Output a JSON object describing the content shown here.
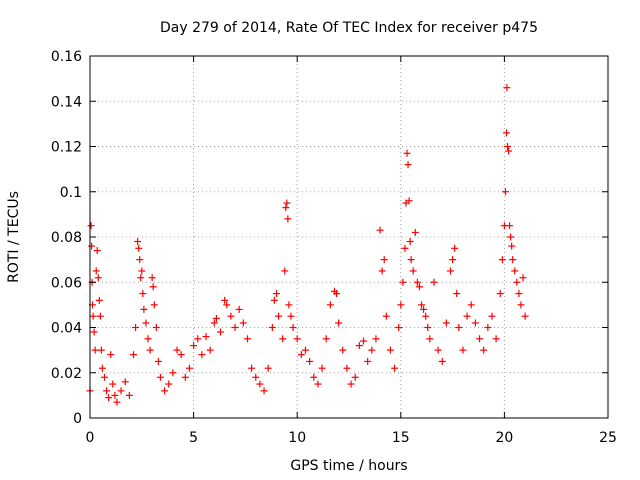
{
  "chart_data": {
    "type": "scatter",
    "title": "Day 279 of 2014, Rate Of TEC Index for receiver p475",
    "xlabel": "GPS time / hours",
    "ylabel": "ROTI / TECUs",
    "xlim": [
      0,
      25
    ],
    "ylim": [
      0,
      0.16
    ],
    "x_ticks": [
      {
        "value": 0,
        "label": "0"
      },
      {
        "value": 5,
        "label": "5"
      },
      {
        "value": 10,
        "label": "10"
      },
      {
        "value": 15,
        "label": "15"
      },
      {
        "value": 20,
        "label": "20"
      },
      {
        "value": 25,
        "label": "25"
      }
    ],
    "y_ticks": [
      {
        "value": 0,
        "label": "0"
      },
      {
        "value": 0.02,
        "label": "0.02"
      },
      {
        "value": 0.04,
        "label": "0.04"
      },
      {
        "value": 0.06,
        "label": "0.06"
      },
      {
        "value": 0.08,
        "label": "0.08"
      },
      {
        "value": 0.1,
        "label": "0.1"
      },
      {
        "value": 0.12,
        "label": "0.12"
      },
      {
        "value": 0.14,
        "label": "0.14"
      },
      {
        "value": 0.16,
        "label": "0.16"
      }
    ],
    "grid": true,
    "marker": "+",
    "marker_color": "#ff0000",
    "series": [
      {
        "name": "p475",
        "points": [
          [
            0.0,
            0.012
          ],
          [
            0.05,
            0.085
          ],
          [
            0.08,
            0.076
          ],
          [
            0.1,
            0.06
          ],
          [
            0.12,
            0.05
          ],
          [
            0.15,
            0.045
          ],
          [
            0.2,
            0.038
          ],
          [
            0.25,
            0.03
          ],
          [
            0.3,
            0.065
          ],
          [
            0.35,
            0.074
          ],
          [
            0.4,
            0.062
          ],
          [
            0.45,
            0.052
          ],
          [
            0.5,
            0.045
          ],
          [
            0.55,
            0.03
          ],
          [
            0.6,
            0.022
          ],
          [
            0.7,
            0.018
          ],
          [
            0.8,
            0.012
          ],
          [
            0.9,
            0.009
          ],
          [
            1.0,
            0.028
          ],
          [
            1.1,
            0.015
          ],
          [
            1.2,
            0.01
          ],
          [
            1.3,
            0.007
          ],
          [
            1.5,
            0.012
          ],
          [
            1.7,
            0.016
          ],
          [
            1.9,
            0.01
          ],
          [
            2.1,
            0.028
          ],
          [
            2.2,
            0.04
          ],
          [
            2.3,
            0.078
          ],
          [
            2.35,
            0.075
          ],
          [
            2.4,
            0.07
          ],
          [
            2.45,
            0.062
          ],
          [
            2.5,
            0.065
          ],
          [
            2.55,
            0.055
          ],
          [
            2.6,
            0.048
          ],
          [
            2.7,
            0.042
          ],
          [
            2.8,
            0.035
          ],
          [
            2.9,
            0.03
          ],
          [
            3.0,
            0.062
          ],
          [
            3.05,
            0.058
          ],
          [
            3.1,
            0.05
          ],
          [
            3.2,
            0.04
          ],
          [
            3.3,
            0.025
          ],
          [
            3.4,
            0.018
          ],
          [
            3.6,
            0.012
          ],
          [
            3.8,
            0.015
          ],
          [
            4.0,
            0.02
          ],
          [
            4.2,
            0.03
          ],
          [
            4.4,
            0.028
          ],
          [
            4.6,
            0.018
          ],
          [
            4.8,
            0.022
          ],
          [
            5.0,
            0.032
          ],
          [
            5.2,
            0.035
          ],
          [
            5.4,
            0.028
          ],
          [
            5.6,
            0.036
          ],
          [
            5.8,
            0.03
          ],
          [
            6.0,
            0.042
          ],
          [
            6.1,
            0.044
          ],
          [
            6.3,
            0.038
          ],
          [
            6.5,
            0.052
          ],
          [
            6.6,
            0.05
          ],
          [
            6.8,
            0.045
          ],
          [
            7.0,
            0.04
          ],
          [
            7.2,
            0.048
          ],
          [
            7.4,
            0.042
          ],
          [
            7.6,
            0.035
          ],
          [
            7.8,
            0.022
          ],
          [
            8.0,
            0.018
          ],
          [
            8.2,
            0.015
          ],
          [
            8.4,
            0.012
          ],
          [
            8.6,
            0.022
          ],
          [
            8.8,
            0.04
          ],
          [
            8.9,
            0.052
          ],
          [
            9.0,
            0.055
          ],
          [
            9.1,
            0.045
          ],
          [
            9.3,
            0.035
          ],
          [
            9.4,
            0.065
          ],
          [
            9.45,
            0.093
          ],
          [
            9.5,
            0.095
          ],
          [
            9.55,
            0.088
          ],
          [
            9.6,
            0.05
          ],
          [
            9.7,
            0.045
          ],
          [
            9.8,
            0.04
          ],
          [
            10.0,
            0.035
          ],
          [
            10.2,
            0.028
          ],
          [
            10.4,
            0.03
          ],
          [
            10.6,
            0.025
          ],
          [
            10.8,
            0.018
          ],
          [
            11.0,
            0.015
          ],
          [
            11.2,
            0.022
          ],
          [
            11.4,
            0.035
          ],
          [
            11.6,
            0.05
          ],
          [
            11.8,
            0.056
          ],
          [
            11.9,
            0.055
          ],
          [
            12.0,
            0.042
          ],
          [
            12.2,
            0.03
          ],
          [
            12.4,
            0.022
          ],
          [
            12.6,
            0.015
          ],
          [
            12.8,
            0.018
          ],
          [
            13.0,
            0.032
          ],
          [
            13.2,
            0.034
          ],
          [
            13.4,
            0.025
          ],
          [
            13.6,
            0.03
          ],
          [
            13.8,
            0.035
          ],
          [
            14.0,
            0.083
          ],
          [
            14.1,
            0.065
          ],
          [
            14.2,
            0.07
          ],
          [
            14.3,
            0.045
          ],
          [
            14.5,
            0.03
          ],
          [
            14.7,
            0.022
          ],
          [
            14.9,
            0.04
          ],
          [
            15.0,
            0.05
          ],
          [
            15.1,
            0.06
          ],
          [
            15.2,
            0.075
          ],
          [
            15.25,
            0.095
          ],
          [
            15.3,
            0.117
          ],
          [
            15.35,
            0.112
          ],
          [
            15.4,
            0.096
          ],
          [
            15.45,
            0.078
          ],
          [
            15.5,
            0.07
          ],
          [
            15.6,
            0.065
          ],
          [
            15.7,
            0.082
          ],
          [
            15.8,
            0.06
          ],
          [
            15.9,
            0.058
          ],
          [
            16.0,
            0.05
          ],
          [
            16.1,
            0.048
          ],
          [
            16.2,
            0.045
          ],
          [
            16.3,
            0.04
          ],
          [
            16.4,
            0.035
          ],
          [
            16.6,
            0.06
          ],
          [
            16.8,
            0.03
          ],
          [
            17.0,
            0.025
          ],
          [
            17.2,
            0.042
          ],
          [
            17.4,
            0.065
          ],
          [
            17.5,
            0.07
          ],
          [
            17.6,
            0.075
          ],
          [
            17.7,
            0.055
          ],
          [
            17.8,
            0.04
          ],
          [
            18.0,
            0.03
          ],
          [
            18.2,
            0.045
          ],
          [
            18.4,
            0.05
          ],
          [
            18.6,
            0.042
          ],
          [
            18.8,
            0.035
          ],
          [
            19.0,
            0.03
          ],
          [
            19.2,
            0.04
          ],
          [
            19.4,
            0.045
          ],
          [
            19.6,
            0.035
          ],
          [
            19.8,
            0.055
          ],
          [
            19.9,
            0.07
          ],
          [
            20.0,
            0.085
          ],
          [
            20.05,
            0.1
          ],
          [
            20.1,
            0.126
          ],
          [
            20.12,
            0.146
          ],
          [
            20.15,
            0.12
          ],
          [
            20.2,
            0.118
          ],
          [
            20.25,
            0.085
          ],
          [
            20.3,
            0.08
          ],
          [
            20.35,
            0.076
          ],
          [
            20.4,
            0.07
          ],
          [
            20.5,
            0.065
          ],
          [
            20.6,
            0.06
          ],
          [
            20.7,
            0.055
          ],
          [
            20.8,
            0.05
          ],
          [
            20.9,
            0.062
          ],
          [
            21.0,
            0.045
          ]
        ]
      }
    ]
  }
}
